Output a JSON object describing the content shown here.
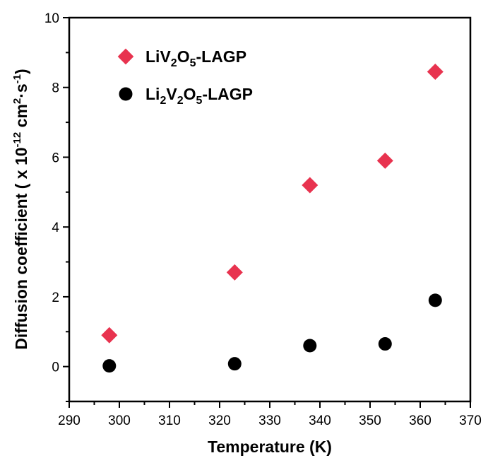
{
  "chart_data": {
    "type": "scatter",
    "xlabel": "Temperature (K)",
    "ylabel_main": "Diffusion coefficient ( x 10",
    "ylabel_exp": "-12",
    "ylabel_unit1": " cm",
    "ylabel_unit1_exp": "2",
    "ylabel_unit2": "·s",
    "ylabel_unit2_exp": "-1",
    "ylabel_close": ")",
    "xlim": [
      290,
      370
    ],
    "ylim": [
      -1,
      10
    ],
    "x_ticks": [
      "290",
      "300",
      "310",
      "320",
      "330",
      "340",
      "350",
      "360",
      "370"
    ],
    "y_ticks": [
      "0",
      "2",
      "4",
      "6",
      "8",
      "10"
    ],
    "legend_position": "top-left",
    "series": [
      {
        "name_parts": {
          "a": "LiV",
          "a_sub": "2",
          "b": "O",
          "b_sub": "5",
          "c": "-LAGP"
        },
        "marker": "diamond",
        "color": "#e8334f",
        "x": [
          298,
          323,
          338,
          353,
          363
        ],
        "y": [
          0.9,
          2.7,
          5.2,
          5.9,
          8.45
        ]
      },
      {
        "name_parts": {
          "a": "Li",
          "a_sub": "2",
          "b": "V",
          "b_sub": "2",
          "c": "O",
          "c_sub": "5",
          "d": "-LAGP"
        },
        "marker": "circle",
        "color": "#000000",
        "x": [
          298,
          323,
          338,
          353,
          363
        ],
        "y": [
          0.02,
          0.08,
          0.6,
          0.65,
          1.9
        ]
      }
    ]
  }
}
